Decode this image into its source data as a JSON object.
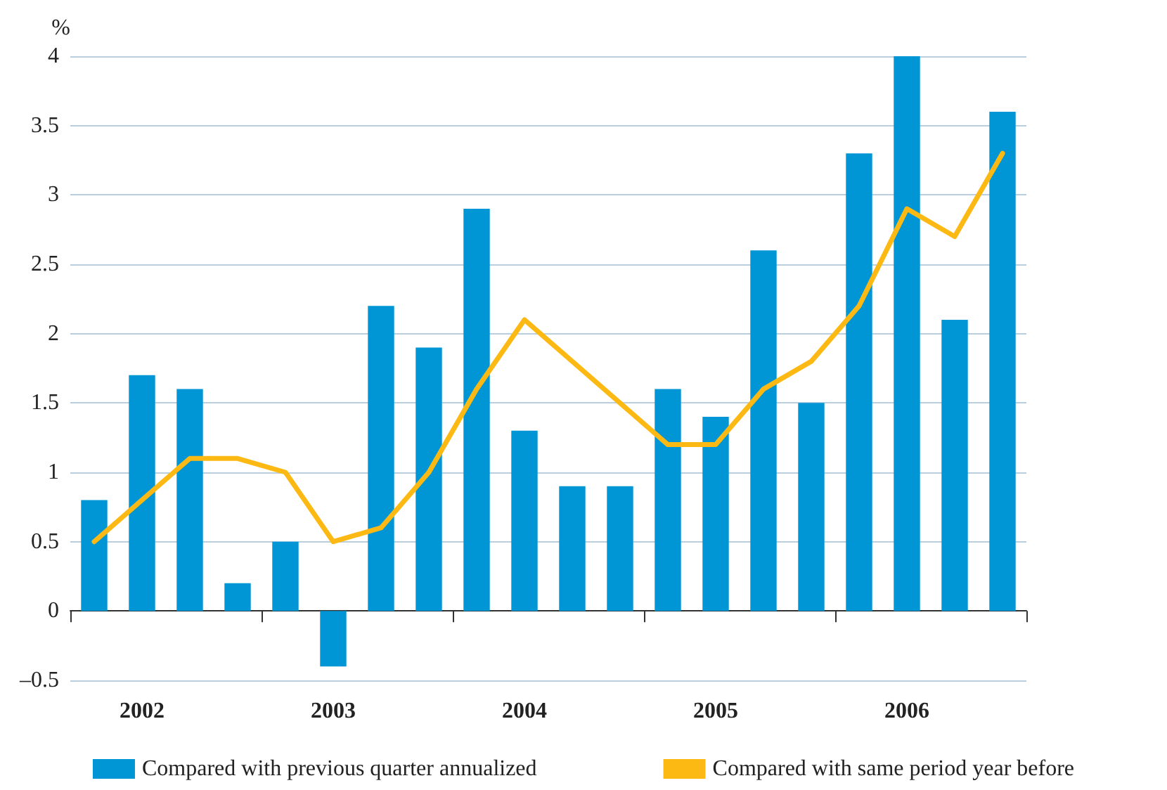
{
  "chart_data": {
    "type": "bar",
    "ylabel": "%",
    "categories": [
      null,
      "2002",
      null,
      null,
      null,
      "2003",
      null,
      null,
      null,
      "2004",
      null,
      null,
      null,
      "2005",
      null,
      null,
      null,
      "2006",
      null,
      null
    ],
    "series": [
      {
        "name": "Compared with previous quarter annualized",
        "color": "#0096d6",
        "values": [
          0.8,
          1.7,
          1.6,
          0.2,
          0.5,
          -0.4,
          2.2,
          1.9,
          2.9,
          1.3,
          0.9,
          0.9,
          1.6,
          1.4,
          2.6,
          1.5,
          3.3,
          4.0,
          2.1,
          3.6
        ]
      },
      {
        "name": "Compared with same period year before",
        "type": "line",
        "color": "#fdb913",
        "values": [
          0.5,
          0.8,
          1.1,
          1.1,
          1.0,
          0.5,
          0.6,
          1.0,
          1.6,
          2.1,
          1.8,
          1.5,
          1.2,
          1.2,
          1.6,
          1.8,
          2.2,
          2.9,
          2.7,
          3.3
        ]
      }
    ],
    "ylim": [
      -0.5,
      4
    ],
    "yticks": [
      {
        "value": -0.5,
        "label": "–0.5"
      },
      0,
      0.5,
      1,
      1.5,
      2,
      2.5,
      3,
      3.5,
      4
    ],
    "grid": "y",
    "legend": "bottom",
    "marker": "none",
    "line_style": "solid"
  }
}
